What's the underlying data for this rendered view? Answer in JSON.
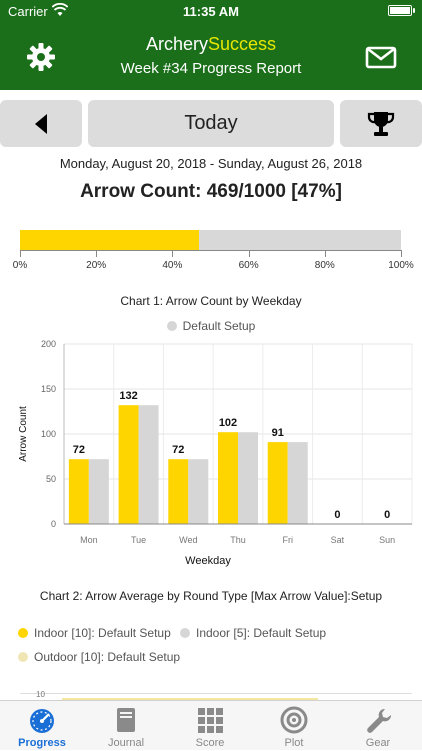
{
  "status_bar": {
    "carrier": "Carrier",
    "time": "11:35 AM"
  },
  "header": {
    "title_part1": "Archery",
    "title_part2": "Success",
    "subtitle": "Week #34 Progress Report",
    "accent_color": "#e6e600",
    "bg_color": "#1b6f1b"
  },
  "toolbar": {
    "today_label": "Today"
  },
  "summary": {
    "date_range": "Monday, August 20, 2018 - Sunday, August 26, 2018",
    "arrow_count": "Arrow Count: 469/1000 [47%]",
    "progress_value": 0.469,
    "progress_ticks": [
      "0%",
      "20%",
      "40%",
      "60%",
      "80%",
      "100%"
    ]
  },
  "chart1": {
    "title": "Chart 1: Arrow Count by Weekday",
    "legend": "Default Setup"
  },
  "chart_data": {
    "type": "bar",
    "title": "Chart 1: Arrow Count by Weekday",
    "xlabel": "Weekday",
    "ylabel": "Arrow Count",
    "ylim": [
      0,
      200
    ],
    "yticks": [
      0,
      50,
      100,
      150,
      200
    ],
    "categories": [
      "Mon",
      "Tue",
      "Wed",
      "Thu",
      "Fri",
      "Sat",
      "Sun"
    ],
    "values": [
      72,
      132,
      72,
      102,
      91,
      0,
      0
    ],
    "series": [
      {
        "name": "Default Setup",
        "values": [
          72,
          132,
          72,
          102,
          91,
          0,
          0
        ],
        "color": "#d6d6d6"
      }
    ],
    "highlight_color": "#ffd500",
    "grid": true
  },
  "chart2": {
    "title": "Chart 2: Arrow Average by Round Type [Max Arrow Value]:Setup",
    "legend": [
      {
        "label": "Indoor [10]: Default Setup",
        "color": "#ffd500"
      },
      {
        "label": "Indoor [5]: Default Setup",
        "color": "#d6d6d6"
      },
      {
        "label": "Outdoor [10]: Default Setup",
        "color": "#f0e6b4"
      }
    ],
    "peek_tick": "10"
  },
  "tabs": [
    {
      "label": "Progress",
      "icon": "gauge-icon",
      "active": true
    },
    {
      "label": "Journal",
      "icon": "book-icon",
      "active": false
    },
    {
      "label": "Score",
      "icon": "grid-icon",
      "active": false
    },
    {
      "label": "Plot",
      "icon": "target-icon",
      "active": false
    },
    {
      "label": "Gear",
      "icon": "wrench-icon",
      "active": false
    }
  ]
}
